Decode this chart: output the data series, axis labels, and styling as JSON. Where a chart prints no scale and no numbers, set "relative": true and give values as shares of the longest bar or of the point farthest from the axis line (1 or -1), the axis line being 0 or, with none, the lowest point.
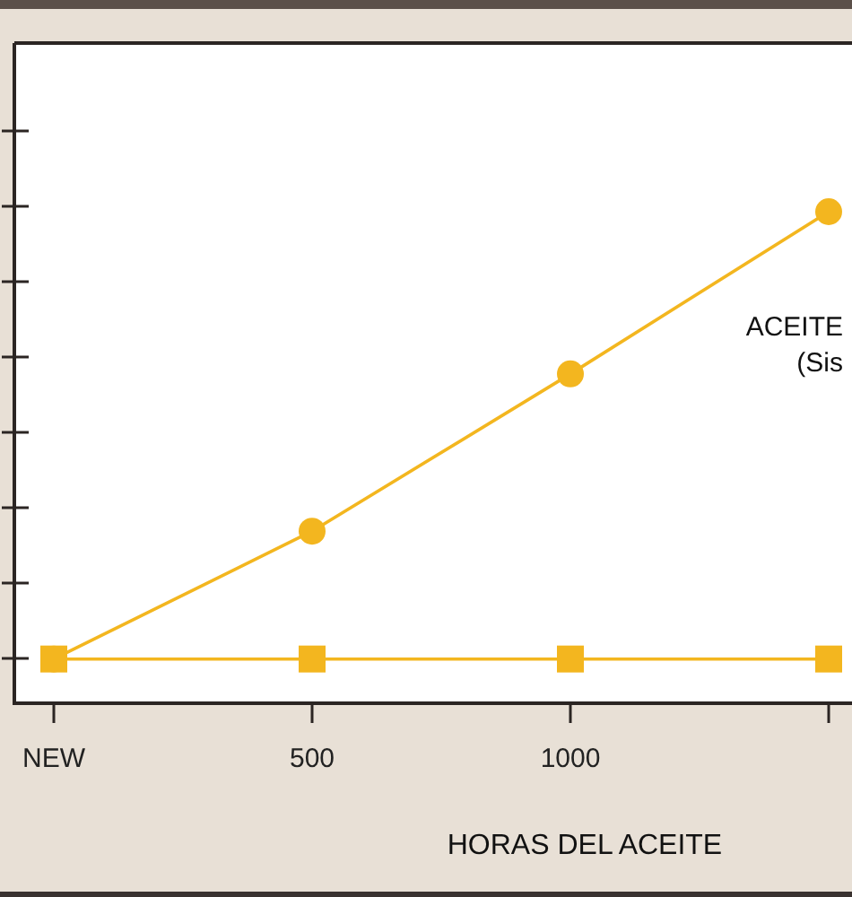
{
  "chart_data": {
    "type": "line",
    "xlabel": "HORAS DEL ACEITE",
    "categories": [
      "NEW",
      "500",
      "1000",
      null
    ],
    "relative": true,
    "series": [
      {
        "color": "#f3b61f",
        "marker": "circle",
        "values": [
          0.09,
          0.35,
          0.67,
          1
        ]
      },
      {
        "color": "#f3b61f",
        "marker": "square",
        "values": [
          0.09,
          0.09,
          0.09,
          0.09
        ]
      }
    ],
    "annotations": [
      "ACEITE",
      "(Sis"
    ]
  }
}
